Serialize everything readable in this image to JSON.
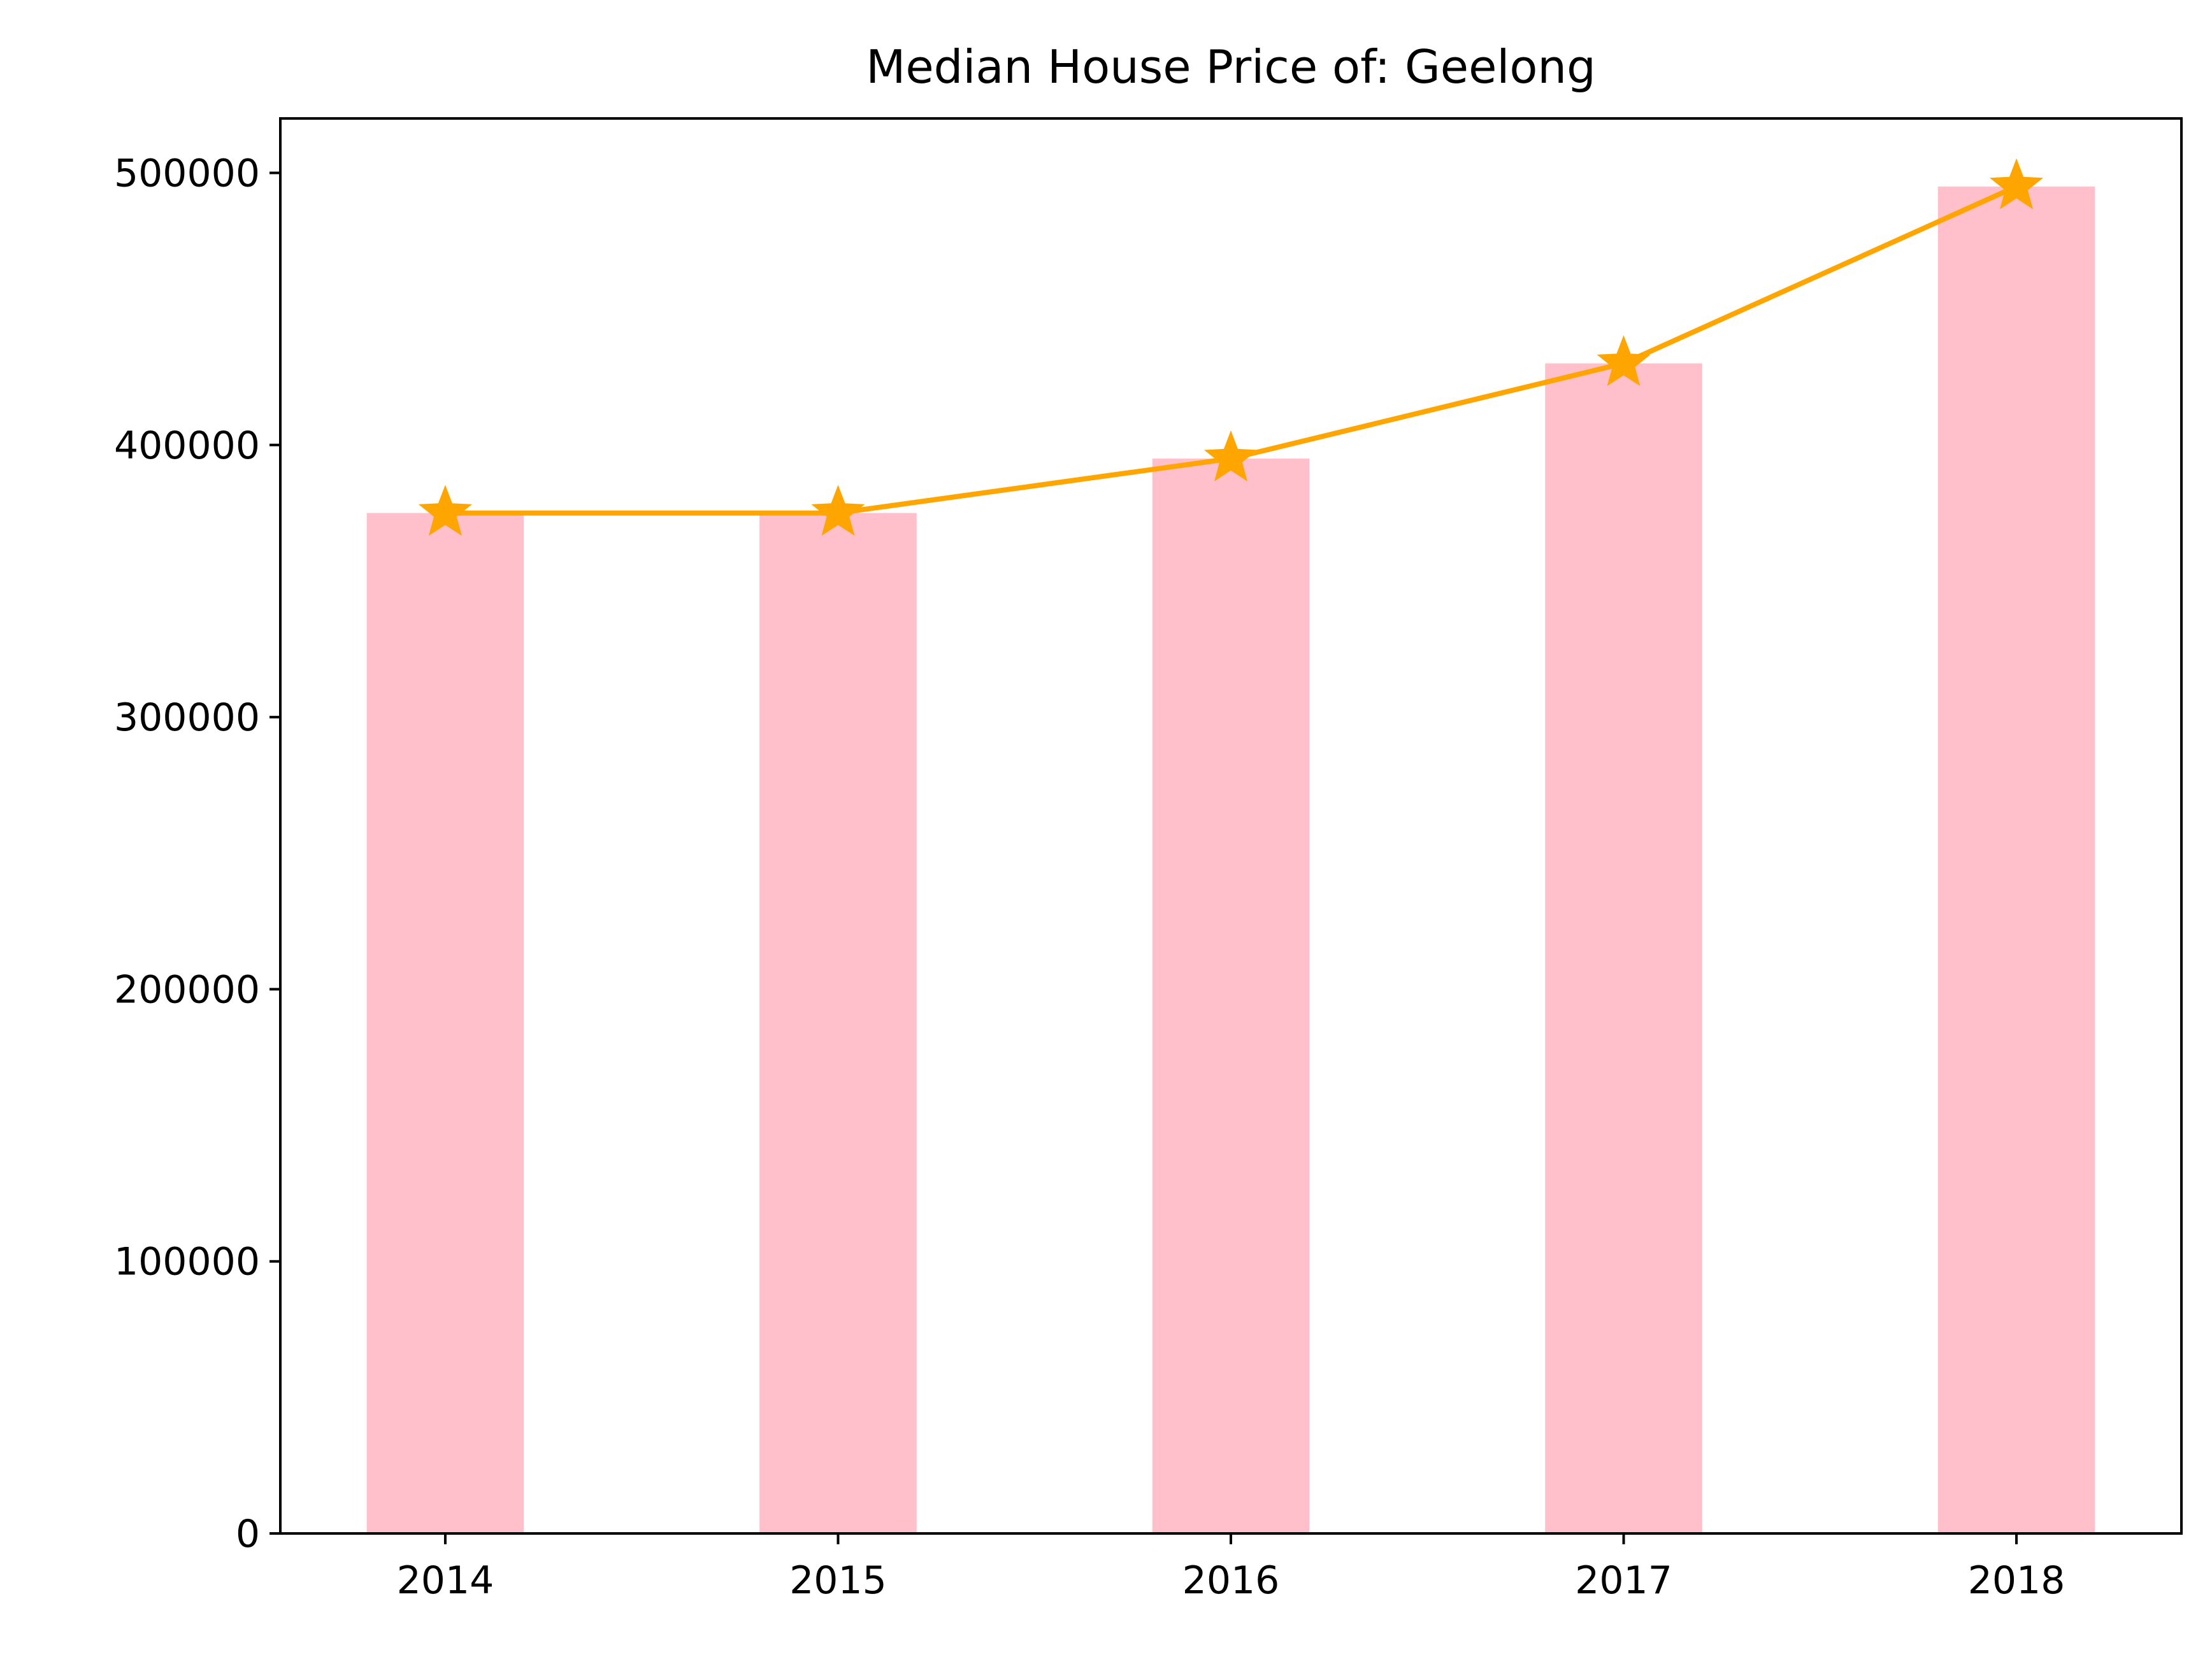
{
  "chart_data": {
    "type": "bar",
    "title": "Median House Price of: Geelong",
    "xlabel": "",
    "ylabel": "",
    "categories": [
      "2014",
      "2015",
      "2016",
      "2017",
      "2018"
    ],
    "values": [
      375000,
      375000,
      395000,
      430000,
      495000
    ],
    "line_values": [
      375000,
      375000,
      395000,
      430000,
      495000
    ],
    "line_marker": "star",
    "ylim": [
      0,
      520000
    ],
    "yticks": [
      0,
      100000,
      200000,
      300000,
      400000,
      500000
    ],
    "ytick_labels": [
      "0",
      "100000",
      "200000",
      "300000",
      "400000",
      "500000"
    ],
    "grid": false,
    "legend": "none",
    "colors": {
      "bar": "#ffc0cb",
      "line": "#ffa500"
    }
  }
}
